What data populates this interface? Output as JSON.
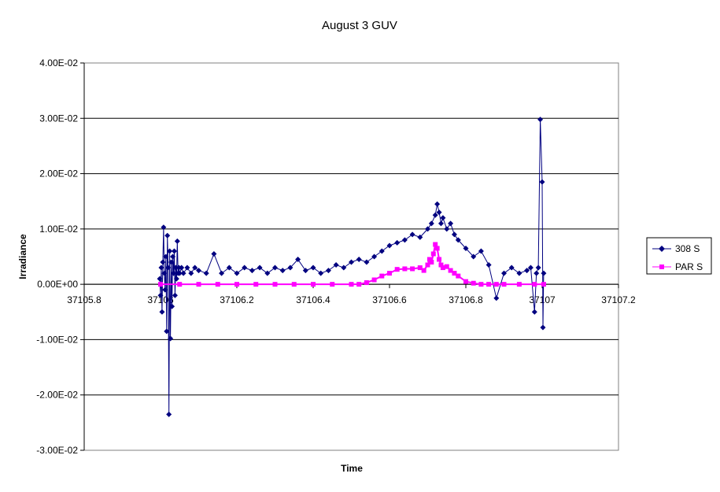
{
  "chart_data": {
    "type": "scatter",
    "title": "August 3 GUV",
    "xlabel": "Time",
    "ylabel": "Irradiance",
    "xlim": [
      37105.8,
      37107.2
    ],
    "ylim": [
      -0.03,
      0.04
    ],
    "x_ticks": [
      "37105.8",
      "37106",
      "37106.2",
      "37106.4",
      "37106.6",
      "37106.8",
      "37107",
      "37107.2"
    ],
    "y_ticks": [
      "4.00E-02",
      "3.00E-02",
      "2.00E-02",
      "1.00E-02",
      "0.00E+00",
      "-1.00E-02",
      "-2.00E-02",
      "-3.00E-02"
    ],
    "grid": "horizontal",
    "legend_position": "right",
    "colors": {
      "308S": "#000080",
      "PARS": "#FF00FF"
    },
    "series": [
      {
        "name": "308 S",
        "marker": "diamond",
        "x": [
          37105.998,
          37106.0,
          37106.002,
          37106.004,
          37106.006,
          37106.008,
          37106.01,
          37106.012,
          37106.014,
          37106.016,
          37106.018,
          37106.02,
          37106.022,
          37106.024,
          37106.026,
          37106.028,
          37106.03,
          37106.032,
          37106.034,
          37106.036,
          37106.038,
          37106.04,
          37106.042,
          37106.044,
          37106.046,
          37106.048,
          37106.05,
          37106.055,
          37106.06,
          37106.07,
          37106.08,
          37106.09,
          37106.1,
          37106.12,
          37106.14,
          37106.16,
          37106.18,
          37106.2,
          37106.22,
          37106.24,
          37106.26,
          37106.28,
          37106.3,
          37106.32,
          37106.34,
          37106.36,
          37106.38,
          37106.4,
          37106.42,
          37106.44,
          37106.46,
          37106.48,
          37106.5,
          37106.52,
          37106.54,
          37106.56,
          37106.58,
          37106.6,
          37106.62,
          37106.64,
          37106.66,
          37106.68,
          37106.7,
          37106.71,
          37106.72,
          37106.725,
          37106.73,
          37106.735,
          37106.74,
          37106.75,
          37106.76,
          37106.77,
          37106.78,
          37106.8,
          37106.82,
          37106.84,
          37106.86,
          37106.88,
          37106.9,
          37106.92,
          37106.94,
          37106.96,
          37106.97,
          37106.98,
          37106.985,
          37106.99,
          37106.995,
          37107.0,
          37107.002,
          37107.004
        ],
        "y": [
          0.001,
          -0.002,
          0.003,
          -0.005,
          0.004,
          0.0103,
          0.002,
          -0.001,
          0.005,
          -0.0085,
          0.0088,
          0.003,
          -0.0235,
          0.006,
          -0.0098,
          0.004,
          -0.004,
          0.005,
          0.002,
          0.006,
          -0.002,
          0.003,
          0.001,
          0.0078,
          0.002,
          0.003,
          0.002,
          0.003,
          0.002,
          0.003,
          0.002,
          0.003,
          0.0025,
          0.002,
          0.0055,
          0.002,
          0.003,
          0.002,
          0.003,
          0.0025,
          0.003,
          0.002,
          0.003,
          0.0025,
          0.003,
          0.0045,
          0.0025,
          0.003,
          0.002,
          0.0025,
          0.0035,
          0.003,
          0.004,
          0.0045,
          0.004,
          0.005,
          0.006,
          0.007,
          0.0075,
          0.008,
          0.009,
          0.0085,
          0.01,
          0.011,
          0.0125,
          0.0145,
          0.013,
          0.011,
          0.012,
          0.01,
          0.011,
          0.009,
          0.008,
          0.0065,
          0.005,
          0.006,
          0.0035,
          -0.0025,
          0.002,
          0.003,
          0.002,
          0.0025,
          0.003,
          -0.005,
          0.002,
          0.003,
          0.0298,
          0.0185,
          -0.0078,
          0.002
        ]
      },
      {
        "name": "PAR S",
        "marker": "square",
        "x": [
          37106.0,
          37106.05,
          37106.1,
          37106.15,
          37106.2,
          37106.25,
          37106.3,
          37106.35,
          37106.4,
          37106.45,
          37106.5,
          37106.52,
          37106.54,
          37106.56,
          37106.58,
          37106.6,
          37106.62,
          37106.64,
          37106.66,
          37106.68,
          37106.69,
          37106.7,
          37106.705,
          37106.71,
          37106.715,
          37106.72,
          37106.725,
          37106.73,
          37106.735,
          37106.74,
          37106.75,
          37106.76,
          37106.77,
          37106.78,
          37106.8,
          37106.82,
          37106.84,
          37106.86,
          37106.88,
          37106.9,
          37106.94,
          37106.98,
          37107.004
        ],
        "y": [
          0.0,
          0.0,
          0.0,
          0.0,
          0.0,
          0.0,
          0.0,
          0.0,
          0.0,
          0.0,
          0.0,
          0.0,
          0.0003,
          0.0008,
          0.0015,
          0.002,
          0.0027,
          0.0028,
          0.0028,
          0.003,
          0.0025,
          0.0035,
          0.0045,
          0.004,
          0.0055,
          0.0072,
          0.0065,
          0.0045,
          0.0035,
          0.003,
          0.0032,
          0.0025,
          0.002,
          0.0015,
          0.0005,
          0.0002,
          0.0,
          0.0,
          0.0,
          0.0,
          0.0,
          0.0,
          0.0
        ]
      }
    ]
  }
}
